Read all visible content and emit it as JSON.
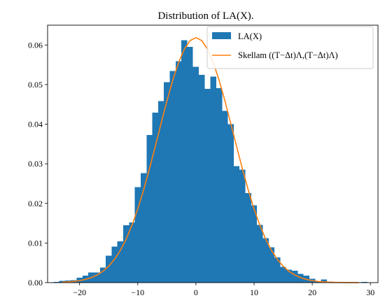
{
  "chart_data": {
    "type": "bar",
    "title": "Distribution of LA(X).",
    "xlabel": "",
    "ylabel": "",
    "xlim": [
      -25.5,
      31.3
    ],
    "ylim": [
      0,
      0.065
    ],
    "x_ticks": [
      -20,
      -10,
      0,
      10,
      20,
      30
    ],
    "y_ticks": [
      0.0,
      0.01,
      0.02,
      0.03,
      0.04,
      0.05,
      0.06
    ],
    "x_tick_labels": [
      "−20",
      "−10",
      "0",
      "10",
      "20",
      "30"
    ],
    "y_tick_labels": [
      "0.00",
      "0.01",
      "0.02",
      "0.03",
      "0.04",
      "0.05",
      "0.06"
    ],
    "grid": false,
    "legend_position": "top-right",
    "histogram": {
      "name": "LA(X)",
      "color": "#1f77b4",
      "bin_width": 1,
      "bins": [
        {
          "x": -24,
          "y": 0.0002
        },
        {
          "x": -23,
          "y": 0.0004
        },
        {
          "x": -22,
          "y": 0.0005
        },
        {
          "x": -21,
          "y": 0.0006
        },
        {
          "x": -20,
          "y": 0.0012
        },
        {
          "x": -19,
          "y": 0.0018
        },
        {
          "x": -18,
          "y": 0.0026
        },
        {
          "x": -17,
          "y": 0.0026
        },
        {
          "x": -16,
          "y": 0.0038
        },
        {
          "x": -15,
          "y": 0.0068
        },
        {
          "x": -14,
          "y": 0.0091
        },
        {
          "x": -13,
          "y": 0.0104
        },
        {
          "x": -12,
          "y": 0.0145
        },
        {
          "x": -11,
          "y": 0.0152
        },
        {
          "x": -10,
          "y": 0.0241
        },
        {
          "x": -9,
          "y": 0.0276
        },
        {
          "x": -8,
          "y": 0.0373
        },
        {
          "x": -7,
          "y": 0.0429
        },
        {
          "x": -6,
          "y": 0.0458
        },
        {
          "x": -5,
          "y": 0.0506
        },
        {
          "x": -4,
          "y": 0.0534
        },
        {
          "x": -3,
          "y": 0.0559
        },
        {
          "x": -2,
          "y": 0.0612
        },
        {
          "x": -1,
          "y": 0.0595
        },
        {
          "x": 0,
          "y": 0.0545
        },
        {
          "x": 1,
          "y": 0.0525
        },
        {
          "x": 2,
          "y": 0.0489
        },
        {
          "x": 3,
          "y": 0.052
        },
        {
          "x": 4,
          "y": 0.0491
        },
        {
          "x": 5,
          "y": 0.0434
        },
        {
          "x": 6,
          "y": 0.04
        },
        {
          "x": 7,
          "y": 0.0294
        },
        {
          "x": 8,
          "y": 0.0285
        },
        {
          "x": 9,
          "y": 0.0226
        },
        {
          "x": 10,
          "y": 0.0195
        },
        {
          "x": 11,
          "y": 0.0146
        },
        {
          "x": 12,
          "y": 0.0112
        },
        {
          "x": 13,
          "y": 0.0089
        },
        {
          "x": 14,
          "y": 0.0064
        },
        {
          "x": 15,
          "y": 0.004
        },
        {
          "x": 16,
          "y": 0.0033
        },
        {
          "x": 17,
          "y": 0.003
        },
        {
          "x": 18,
          "y": 0.0022
        },
        {
          "x": 19,
          "y": 0.0018
        },
        {
          "x": 20,
          "y": 0.001
        },
        {
          "x": 21,
          "y": 0.0003
        },
        {
          "x": 22,
          "y": 0.0008
        },
        {
          "x": 23,
          "y": 0.0003
        },
        {
          "x": 24,
          "y": 0.0002
        },
        {
          "x": 25,
          "y": 0.0001
        },
        {
          "x": 26,
          "y": 0.0001
        },
        {
          "x": 27,
          "y": 0.0001
        },
        {
          "x": 28,
          "y": 0.0001
        },
        {
          "x": 29,
          "y": 0.0002
        }
      ]
    },
    "series": [
      {
        "name": "Skellam ((T−Δt)Λ,(T−Δt)Λ)",
        "color": "#ff7f0e",
        "type": "line",
        "mean": 0,
        "std": 6.45,
        "x_range": [
          -23,
          28
        ],
        "x_step": 1
      }
    ]
  },
  "legend": {
    "entries": [
      {
        "label": "LA(X)",
        "color": "#1f77b4",
        "kind": "patch"
      },
      {
        "label": "Skellam ((T−Δt)Λ,(T−Δt)Λ)",
        "color": "#ff7f0e",
        "kind": "line"
      }
    ]
  }
}
